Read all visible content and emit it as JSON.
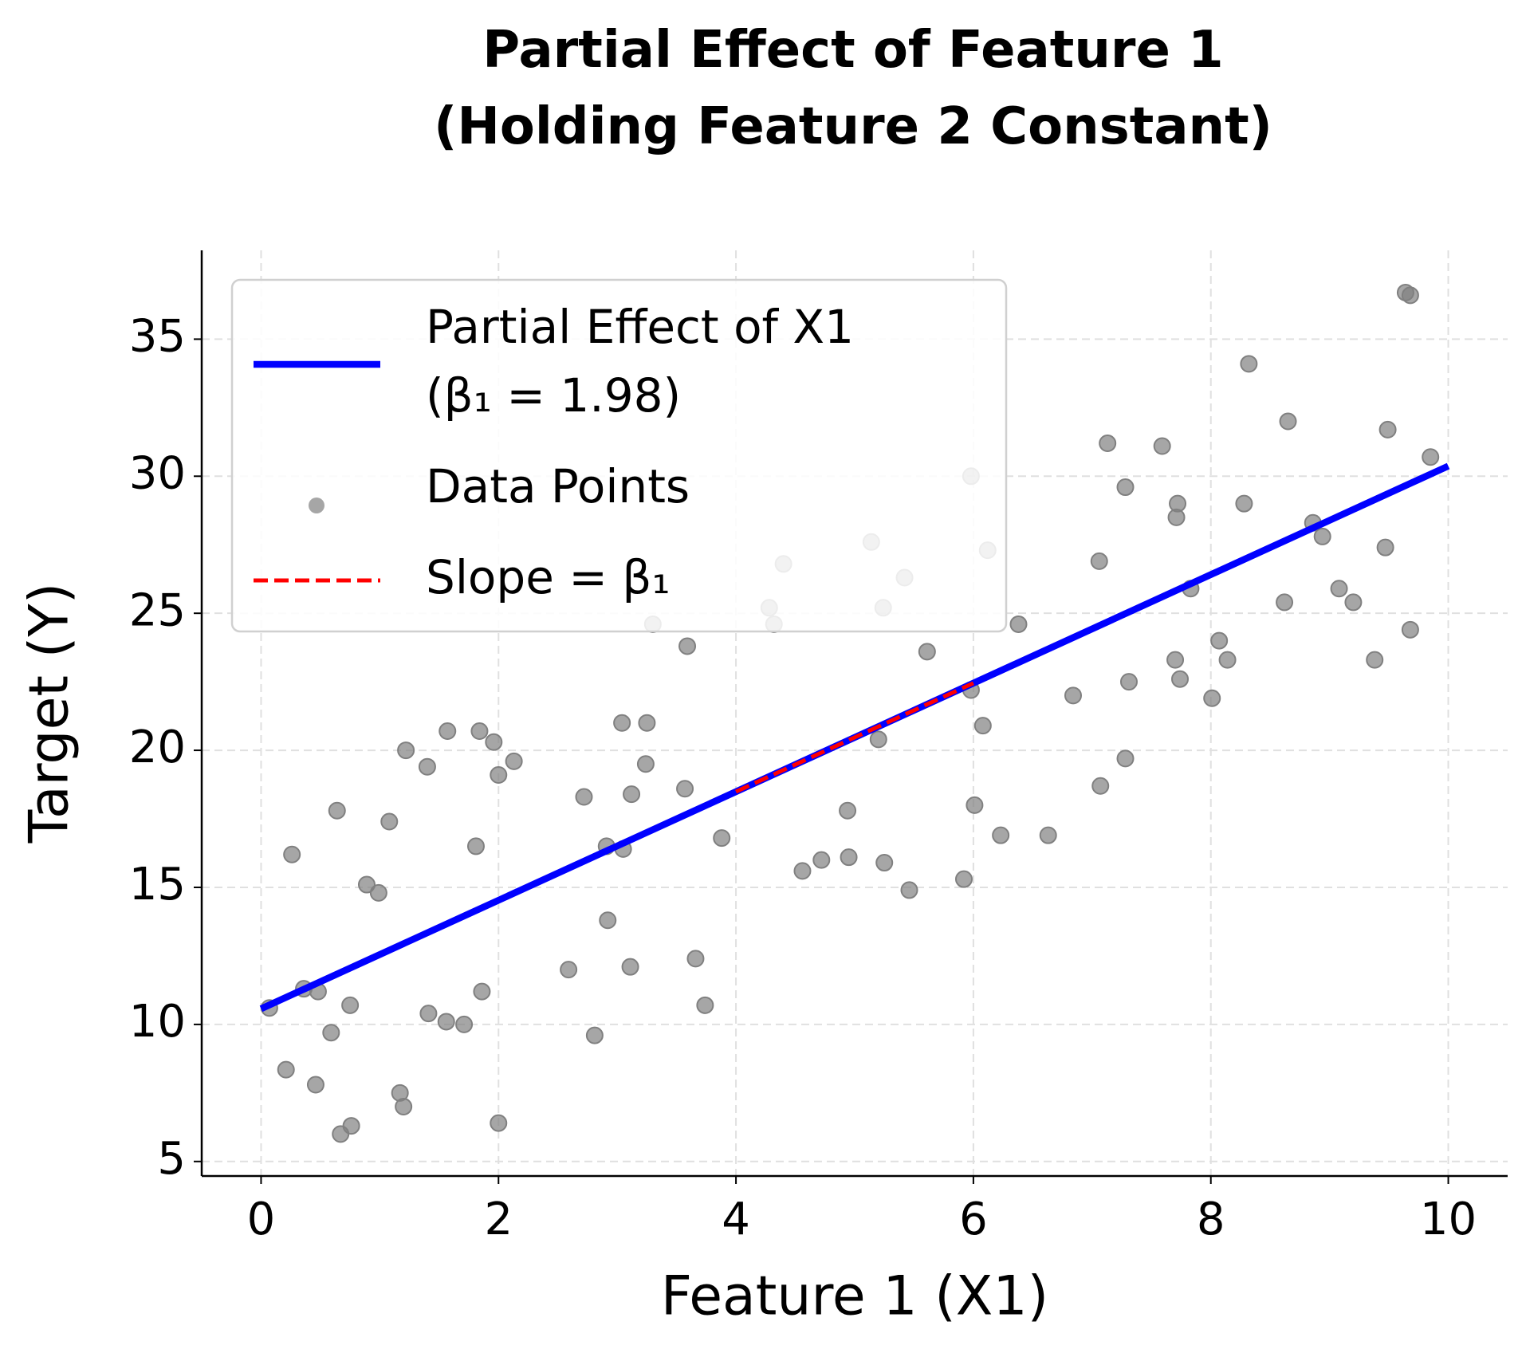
{
  "chart_data": {
    "type": "scatter",
    "title": "Partial Effect of Feature 1\n(Holding Feature 2 Constant)",
    "x_label": "Feature 1 (X1)",
    "y_label": "Target (Y)",
    "xlim": [
      -0.5,
      10.5
    ],
    "ylim": [
      4.47,
      38.24
    ],
    "xticks": [
      0,
      2,
      4,
      6,
      8,
      10
    ],
    "yticks": [
      5,
      10,
      15,
      20,
      25,
      30,
      35
    ],
    "grid": true,
    "legend": "upper left",
    "series": [
      {
        "name": "Partial Effect of X1\n(β₁ = 1.98)",
        "kind": "line",
        "color": "#0000ff",
        "x": [
          0,
          10
        ],
        "values": [
          10.57,
          30.37
        ]
      },
      {
        "name": "Data Points",
        "kind": "points",
        "color": "#808080",
        "x": [
          0.07,
          0.21,
          0.26,
          0.36,
          0.46,
          0.48,
          0.59,
          0.64,
          0.67,
          0.75,
          0.76,
          0.89,
          0.99,
          1.08,
          1.17,
          1.2,
          1.22,
          1.4,
          1.41,
          1.56,
          1.57,
          1.71,
          1.81,
          1.84,
          1.86,
          1.96,
          2.0,
          2.0,
          2.13,
          2.59,
          2.72,
          2.81,
          2.91,
          2.92,
          3.05,
          3.04,
          3.11,
          3.12,
          3.25,
          3.24,
          3.3,
          3.57,
          3.59,
          3.66,
          3.74,
          3.88,
          4.28,
          4.32,
          4.4,
          4.56,
          4.72,
          4.94,
          4.95,
          5.14,
          5.2,
          5.24,
          5.25,
          5.42,
          5.46,
          5.61,
          5.92,
          5.98,
          5.98,
          6.01,
          6.08,
          6.12,
          6.23,
          6.38,
          6.63,
          6.84,
          7.06,
          7.07,
          7.13,
          7.28,
          7.28,
          7.31,
          7.59,
          7.7,
          7.71,
          7.72,
          7.74,
          7.83,
          8.01,
          8.07,
          8.14,
          8.28,
          8.32,
          8.62,
          8.65,
          8.86,
          8.94,
          9.08,
          9.2,
          9.38,
          9.47,
          9.49,
          9.64,
          9.68,
          9.68,
          9.85
        ],
        "values": [
          10.6,
          8.35,
          16.2,
          11.3,
          7.8,
          11.2,
          9.7,
          17.8,
          6.0,
          10.7,
          6.3,
          15.1,
          14.8,
          17.4,
          7.5,
          7.0,
          20.0,
          19.4,
          10.4,
          10.1,
          20.7,
          10.0,
          16.5,
          20.7,
          11.2,
          20.3,
          6.4,
          19.1,
          19.6,
          12.0,
          18.3,
          9.6,
          16.5,
          13.8,
          16.4,
          21.0,
          12.1,
          18.4,
          21.0,
          19.5,
          24.6,
          18.6,
          23.8,
          12.4,
          10.7,
          16.8,
          25.2,
          24.6,
          26.8,
          15.6,
          16.0,
          17.8,
          16.1,
          27.6,
          20.4,
          25.2,
          15.9,
          26.3,
          14.9,
          23.6,
          15.3,
          22.2,
          30.0,
          18.0,
          20.9,
          27.3,
          16.9,
          24.6,
          16.9,
          22.0,
          26.9,
          18.7,
          31.2,
          19.7,
          29.6,
          22.5,
          31.1,
          23.3,
          28.5,
          29.0,
          22.6,
          25.9,
          21.9,
          24.0,
          23.3,
          29.0,
          34.1,
          25.4,
          32.0,
          28.3,
          27.8,
          25.9,
          25.4,
          23.3,
          27.4,
          31.7,
          36.7,
          36.6,
          24.4,
          30.7
        ]
      },
      {
        "name": "Slope = β₁",
        "kind": "dashed",
        "color": "#ff0000",
        "x": [
          4,
          6
        ],
        "values": [
          18.49,
          22.45
        ]
      }
    ]
  }
}
